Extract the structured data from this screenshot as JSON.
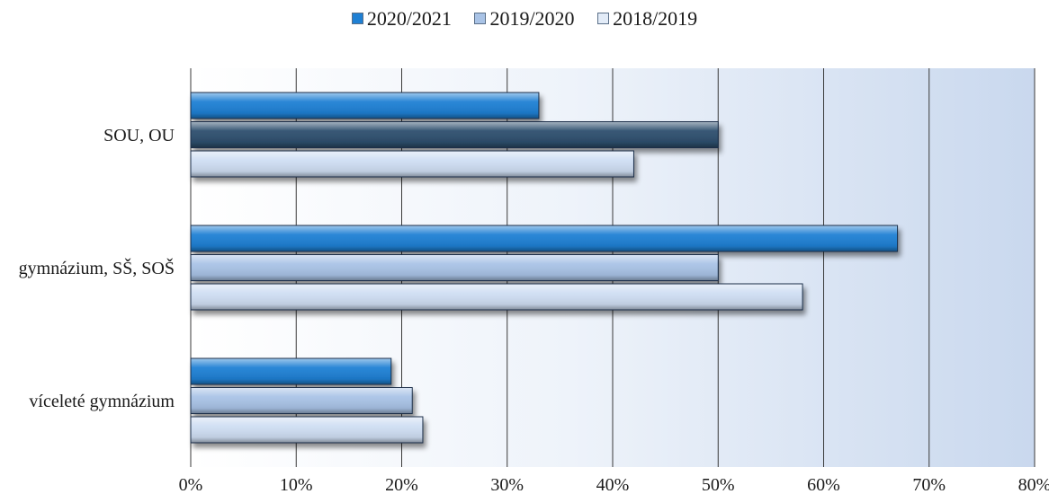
{
  "chart_data": {
    "type": "bar",
    "orientation": "horizontal",
    "categories": [
      "SOU, OU",
      "gymnázium, SŠ, SOŠ",
      "víceleté gymnázium"
    ],
    "series": [
      {
        "name": "2020/2021",
        "values": [
          33,
          67,
          19
        ],
        "color": "#1f80d4"
      },
      {
        "name": "2019/2020",
        "values": [
          50,
          50,
          21
        ],
        "colors": [
          "#2e4f6e",
          "#a9c3e6",
          "#a9c3e6"
        ]
      },
      {
        "name": "2018/2019",
        "values": [
          42,
          58,
          22
        ],
        "color": "#cfdef3"
      }
    ],
    "x_ticks": [
      "0%",
      "10%",
      "20%",
      "30%",
      "40%",
      "50%",
      "60%",
      "70%",
      "80%"
    ],
    "xlim": [
      0,
      80
    ],
    "grid": true,
    "legend_position": "top-center",
    "title": "",
    "xlabel": "",
    "ylabel": ""
  }
}
